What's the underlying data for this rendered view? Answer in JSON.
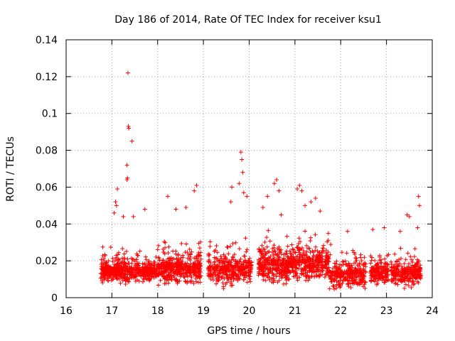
{
  "chart_data": {
    "type": "scatter",
    "title": "Day 186 of 2014, Rate Of TEC Index for receiver ksu1",
    "xlabel": "GPS time / hours",
    "ylabel": "ROTI / TECUs",
    "xlim": [
      16,
      24
    ],
    "ylim": [
      0,
      0.14
    ],
    "x_ticks": [
      "16",
      "17",
      "18",
      "19",
      "20",
      "21",
      "22",
      "23",
      "24"
    ],
    "y_ticks": [
      "0",
      "0.02",
      "0.04",
      "0.06",
      "0.08",
      "0.1",
      "0.12",
      "0.14"
    ],
    "x_tick_values": [
      16,
      17,
      18,
      19,
      20,
      21,
      22,
      23,
      24
    ],
    "y_tick_values": [
      0,
      0.02,
      0.04,
      0.06,
      0.08,
      0.1,
      0.12,
      0.14
    ],
    "grid": true,
    "marker": "+",
    "marker_color": "#ff0000",
    "series": [
      {
        "name": "ROTI",
        "points": [
          [
            17.35,
            0.122
          ],
          [
            17.36,
            0.093
          ],
          [
            17.37,
            0.092
          ],
          [
            17.44,
            0.085
          ],
          [
            17.33,
            0.072
          ],
          [
            17.34,
            0.065
          ],
          [
            17.33,
            0.064
          ],
          [
            17.12,
            0.059
          ],
          [
            17.08,
            0.052
          ],
          [
            17.1,
            0.05
          ],
          [
            17.05,
            0.046
          ],
          [
            17.25,
            0.044
          ],
          [
            17.47,
            0.044
          ],
          [
            17.72,
            0.048
          ],
          [
            18.22,
            0.055
          ],
          [
            18.4,
            0.048
          ],
          [
            18.62,
            0.049
          ],
          [
            18.8,
            0.058
          ],
          [
            18.85,
            0.061
          ],
          [
            19.6,
            0.052
          ],
          [
            19.62,
            0.06
          ],
          [
            19.78,
            0.062
          ],
          [
            19.82,
            0.079
          ],
          [
            19.84,
            0.075
          ],
          [
            19.86,
            0.068
          ],
          [
            19.88,
            0.057
          ],
          [
            19.95,
            0.055
          ],
          [
            20.3,
            0.049
          ],
          [
            20.4,
            0.055
          ],
          [
            20.55,
            0.062
          ],
          [
            20.6,
            0.064
          ],
          [
            20.65,
            0.058
          ],
          [
            20.7,
            0.045
          ],
          [
            21.05,
            0.059
          ],
          [
            21.1,
            0.061
          ],
          [
            21.15,
            0.058
          ],
          [
            21.22,
            0.05
          ],
          [
            21.35,
            0.052
          ],
          [
            21.45,
            0.054
          ],
          [
            21.55,
            0.047
          ],
          [
            22.15,
            0.036
          ],
          [
            22.7,
            0.037
          ],
          [
            22.95,
            0.038
          ],
          [
            23.3,
            0.036
          ],
          [
            23.45,
            0.045
          ],
          [
            23.5,
            0.044
          ],
          [
            23.7,
            0.055
          ],
          [
            23.72,
            0.05
          ],
          [
            23.68,
            0.038
          ]
        ]
      }
    ],
    "clusters": [
      {
        "x_range": [
          16.75,
          17.3
        ],
        "y_range": [
          0.006,
          0.03
        ],
        "count": 300
      },
      {
        "x_range": [
          17.3,
          18.0
        ],
        "y_range": [
          0.007,
          0.028
        ],
        "count": 280
      },
      {
        "x_range": [
          18.0,
          18.95
        ],
        "y_range": [
          0.005,
          0.036
        ],
        "count": 420
      },
      {
        "x_range": [
          19.1,
          20.05
        ],
        "y_range": [
          0.004,
          0.035
        ],
        "count": 380
      },
      {
        "x_range": [
          20.2,
          20.9
        ],
        "y_range": [
          0.005,
          0.04
        ],
        "count": 330
      },
      {
        "x_range": [
          20.9,
          21.75
        ],
        "y_range": [
          0.006,
          0.042
        ],
        "count": 360
      },
      {
        "x_range": [
          21.75,
          22.55
        ],
        "y_range": [
          0.002,
          0.032
        ],
        "count": 300
      },
      {
        "x_range": [
          22.65,
          23.05
        ],
        "y_range": [
          0.005,
          0.028
        ],
        "count": 170
      },
      {
        "x_range": [
          23.1,
          23.75
        ],
        "y_range": [
          0.004,
          0.03
        ],
        "count": 260
      }
    ]
  }
}
